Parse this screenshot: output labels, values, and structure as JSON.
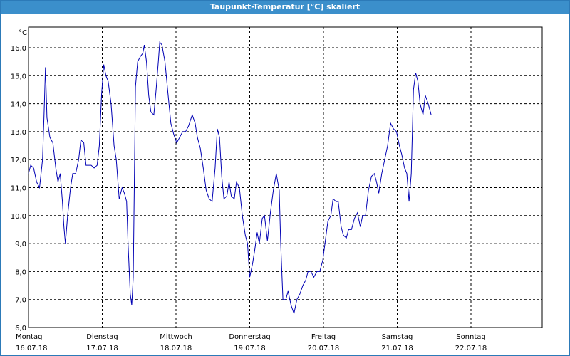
{
  "window": {
    "title": "Taupunkt-Temperatur [°C] skaliert"
  },
  "colors": {
    "line": "#0000b4",
    "titlebar": "#3b8fcb",
    "grid": "#000000",
    "border": "#2c7ab8"
  },
  "chart_data": {
    "type": "line",
    "title": "Taupunkt-Temperatur [°C] skaliert",
    "ylabel": "°C",
    "xlabel": "",
    "ylim": [
      6.0,
      16.5
    ],
    "xlim": [
      0,
      7.0
    ],
    "grid": true,
    "grid_style": "dashed",
    "y_ticks": [
      "16,0",
      "15,0",
      "14,0",
      "13,0",
      "12,0",
      "11,0",
      "10,0",
      "9,0",
      "8,0",
      "7,0",
      "6,0"
    ],
    "y_tick_values": [
      16,
      15,
      14,
      13,
      12,
      11,
      10,
      9,
      8,
      7,
      6
    ],
    "x_ticks": [
      {
        "day": "Montag",
        "date": "16.07.18"
      },
      {
        "day": "Dienstag",
        "date": "17.07.18"
      },
      {
        "day": "Mittwoch",
        "date": "18.07.18"
      },
      {
        "day": "Donnerstag",
        "date": "19.07.18"
      },
      {
        "day": "Freitag",
        "date": "20.07.18"
      },
      {
        "day": "Samstag",
        "date": "21.07.18"
      },
      {
        "day": "Sonntag",
        "date": "22.07.18"
      }
    ],
    "series": [
      {
        "color": "#0000b4",
        "points": [
          [
            0.0,
            11.5
          ],
          [
            0.03,
            11.8
          ],
          [
            0.07,
            11.7
          ],
          [
            0.11,
            11.2
          ],
          [
            0.15,
            11.0
          ],
          [
            0.19,
            12.0
          ],
          [
            0.21,
            13.5
          ],
          [
            0.23,
            15.3
          ],
          [
            0.25,
            13.5
          ],
          [
            0.29,
            12.8
          ],
          [
            0.33,
            12.6
          ],
          [
            0.37,
            11.7
          ],
          [
            0.4,
            11.2
          ],
          [
            0.43,
            11.5
          ],
          [
            0.46,
            10.5
          ],
          [
            0.48,
            9.6
          ],
          [
            0.5,
            9.0
          ],
          [
            0.53,
            10.0
          ],
          [
            0.57,
            11.0
          ],
          [
            0.6,
            11.5
          ],
          [
            0.64,
            11.5
          ],
          [
            0.68,
            12.0
          ],
          [
            0.71,
            12.7
          ],
          [
            0.75,
            12.6
          ],
          [
            0.78,
            11.8
          ],
          [
            0.82,
            11.8
          ],
          [
            0.85,
            11.8
          ],
          [
            0.89,
            11.7
          ],
          [
            0.93,
            11.8
          ],
          [
            0.96,
            12.5
          ],
          [
            0.99,
            14.3
          ],
          [
            1.02,
            15.4
          ],
          [
            1.05,
            15.0
          ],
          [
            1.08,
            14.8
          ],
          [
            1.12,
            14.0
          ],
          [
            1.16,
            12.5
          ],
          [
            1.19,
            12.0
          ],
          [
            1.23,
            10.6
          ],
          [
            1.27,
            11.0
          ],
          [
            1.3,
            10.8
          ],
          [
            1.33,
            10.5
          ],
          [
            1.35,
            9.0
          ],
          [
            1.38,
            7.2
          ],
          [
            1.4,
            6.8
          ],
          [
            1.42,
            7.8
          ],
          [
            1.45,
            14.6
          ],
          [
            1.48,
            15.5
          ],
          [
            1.52,
            15.7
          ],
          [
            1.55,
            15.8
          ],
          [
            1.57,
            16.1
          ],
          [
            1.6,
            15.5
          ],
          [
            1.63,
            14.3
          ],
          [
            1.66,
            13.7
          ],
          [
            1.7,
            13.6
          ],
          [
            1.73,
            14.5
          ],
          [
            1.76,
            15.5
          ],
          [
            1.78,
            16.2
          ],
          [
            1.81,
            16.1
          ],
          [
            1.85,
            15.5
          ],
          [
            1.89,
            14.4
          ],
          [
            1.93,
            13.3
          ],
          [
            1.97,
            12.9
          ],
          [
            2.01,
            12.6
          ],
          [
            2.05,
            12.8
          ],
          [
            2.09,
            13.0
          ],
          [
            2.13,
            13.0
          ],
          [
            2.17,
            13.2
          ],
          [
            2.22,
            13.6
          ],
          [
            2.26,
            13.3
          ],
          [
            2.29,
            12.8
          ],
          [
            2.33,
            12.4
          ],
          [
            2.37,
            11.7
          ],
          [
            2.41,
            10.9
          ],
          [
            2.45,
            10.6
          ],
          [
            2.49,
            10.5
          ],
          [
            2.53,
            11.7
          ],
          [
            2.56,
            13.1
          ],
          [
            2.59,
            12.8
          ],
          [
            2.62,
            11.4
          ],
          [
            2.65,
            10.6
          ],
          [
            2.69,
            10.7
          ],
          [
            2.72,
            11.2
          ],
          [
            2.75,
            10.7
          ],
          [
            2.79,
            10.6
          ],
          [
            2.82,
            11.2
          ],
          [
            2.86,
            11.0
          ],
          [
            2.9,
            10.0
          ],
          [
            2.94,
            9.3
          ],
          [
            2.97,
            9.0
          ],
          [
            3.0,
            7.8
          ],
          [
            3.04,
            8.3
          ],
          [
            3.07,
            8.8
          ],
          [
            3.1,
            9.4
          ],
          [
            3.13,
            9.0
          ],
          [
            3.17,
            9.9
          ],
          [
            3.2,
            10.0
          ],
          [
            3.24,
            9.1
          ],
          [
            3.28,
            10.1
          ],
          [
            3.32,
            10.9
          ],
          [
            3.36,
            11.5
          ],
          [
            3.4,
            10.9
          ],
          [
            3.42,
            9.0
          ],
          [
            3.45,
            7.0
          ],
          [
            3.49,
            7.0
          ],
          [
            3.52,
            7.3
          ],
          [
            3.56,
            6.8
          ],
          [
            3.6,
            6.5
          ],
          [
            3.64,
            7.0
          ],
          [
            3.68,
            7.2
          ],
          [
            3.72,
            7.5
          ],
          [
            3.76,
            7.7
          ],
          [
            3.79,
            8.0
          ],
          [
            3.83,
            8.0
          ],
          [
            3.87,
            7.8
          ],
          [
            3.91,
            8.0
          ],
          [
            3.95,
            8.0
          ],
          [
            3.99,
            8.4
          ],
          [
            4.02,
            9.0
          ],
          [
            4.06,
            9.8
          ],
          [
            4.1,
            10.0
          ],
          [
            4.13,
            10.6
          ],
          [
            4.17,
            10.5
          ],
          [
            4.2,
            10.5
          ],
          [
            4.24,
            9.6
          ],
          [
            4.27,
            9.3
          ],
          [
            4.31,
            9.2
          ],
          [
            4.34,
            9.5
          ],
          [
            4.38,
            9.5
          ],
          [
            4.42,
            9.9
          ],
          [
            4.46,
            10.1
          ],
          [
            4.5,
            9.6
          ],
          [
            4.53,
            10.0
          ],
          [
            4.57,
            10.0
          ],
          [
            4.61,
            10.9
          ],
          [
            4.65,
            11.4
          ],
          [
            4.69,
            11.5
          ],
          [
            4.72,
            11.2
          ],
          [
            4.75,
            10.8
          ],
          [
            4.79,
            11.5
          ],
          [
            4.83,
            12.0
          ],
          [
            4.87,
            12.5
          ],
          [
            4.91,
            13.3
          ],
          [
            4.95,
            13.1
          ],
          [
            4.99,
            13.0
          ],
          [
            5.03,
            12.5
          ],
          [
            5.06,
            12.2
          ],
          [
            5.1,
            11.7
          ],
          [
            5.13,
            11.5
          ],
          [
            5.16,
            10.5
          ],
          [
            5.19,
            11.5
          ],
          [
            5.22,
            14.5
          ],
          [
            5.25,
            15.1
          ],
          [
            5.28,
            14.8
          ],
          [
            5.31,
            14.0
          ],
          [
            5.35,
            13.6
          ],
          [
            5.38,
            14.3
          ],
          [
            5.42,
            14.0
          ],
          [
            5.46,
            13.6
          ]
        ]
      }
    ]
  }
}
